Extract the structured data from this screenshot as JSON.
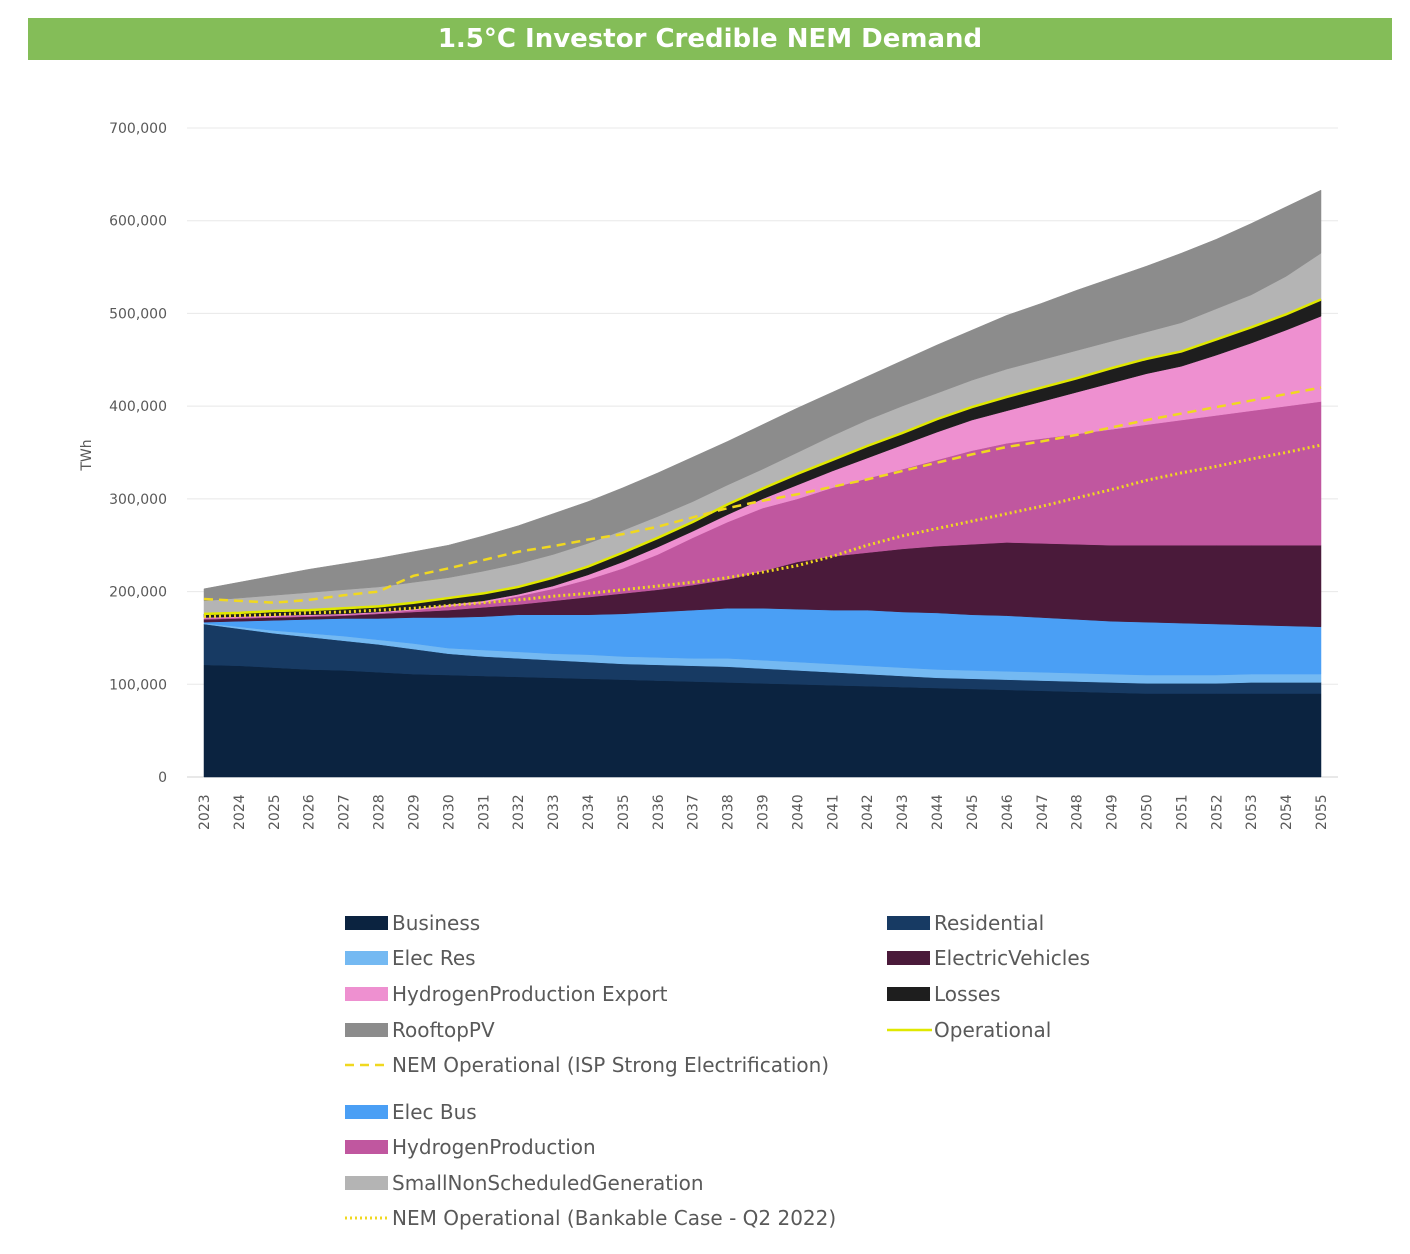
{
  "chart_data": {
    "type": "area",
    "title": "1.5°C Investor Credible NEM Demand",
    "ylabel": "TWh",
    "xlabel": "",
    "ylim": [
      0,
      700000
    ],
    "yticks": [
      "0",
      "100,000",
      "200,000",
      "300,000",
      "400,000",
      "500,000",
      "600,000",
      "700,000"
    ],
    "grid": true,
    "legend_position": "bottom",
    "x": [
      2023,
      2024,
      2025,
      2026,
      2027,
      2028,
      2029,
      2030,
      2031,
      2032,
      2033,
      2034,
      2035,
      2036,
      2037,
      2038,
      2039,
      2040,
      2041,
      2042,
      2043,
      2044,
      2045,
      2046,
      2047,
      2048,
      2049,
      2050,
      2051,
      2052,
      2053,
      2054,
      2055
    ],
    "stacked_series": [
      {
        "name": "Business",
        "color": "#0b2340",
        "values": [
          121000,
          120000,
          118000,
          116000,
          115000,
          113000,
          111000,
          110000,
          109000,
          108000,
          107000,
          106000,
          105000,
          104000,
          103000,
          102000,
          101000,
          100000,
          99000,
          98000,
          97000,
          96000,
          95000,
          94000,
          93000,
          92000,
          91000,
          90000,
          90000,
          90000,
          90000,
          90000,
          90000
        ]
      },
      {
        "name": "Residential",
        "color": "#173a63",
        "values": [
          44000,
          40000,
          37000,
          35000,
          32000,
          30000,
          27000,
          23000,
          21000,
          20000,
          19000,
          18000,
          17000,
          17000,
          17000,
          17000,
          16000,
          15000,
          14000,
          13000,
          12000,
          11000,
          11000,
          11000,
          11000,
          11000,
          11000,
          11000,
          11000,
          11000,
          12000,
          12000,
          12000
        ]
      },
      {
        "name": "Elec Res",
        "color": "#74b9f2",
        "values": [
          1000,
          2000,
          3000,
          4000,
          5000,
          5000,
          6000,
          6000,
          7000,
          7000,
          7000,
          8000,
          8000,
          8000,
          8000,
          9000,
          9000,
          9000,
          9000,
          9000,
          9000,
          9000,
          9000,
          9000,
          9000,
          9000,
          9000,
          9000,
          9000,
          9000,
          9000,
          9000,
          9000
        ]
      },
      {
        "name": "Elec Bus",
        "color": "#4a9ff5",
        "values": [
          1000,
          6000,
          11000,
          15000,
          19000,
          23000,
          28000,
          33000,
          36000,
          40000,
          42000,
          43000,
          46000,
          49000,
          52000,
          54000,
          56000,
          57000,
          58000,
          60000,
          60000,
          61000,
          60000,
          60000,
          59000,
          58000,
          57000,
          57000,
          56000,
          55000,
          53000,
          52000,
          51000
        ]
      },
      {
        "name": "ElectricVehicles",
        "color": "#4a1a3a",
        "values": [
          3000,
          3000,
          3000,
          3000,
          3000,
          5000,
          6000,
          8000,
          10000,
          11000,
          15000,
          19000,
          22000,
          24000,
          27000,
          31000,
          40000,
          51000,
          58000,
          62000,
          68000,
          72000,
          76000,
          79000,
          80000,
          81000,
          82000,
          83000,
          84000,
          85000,
          86000,
          87000,
          88000
        ]
      },
      {
        "name": "HydrogenProduction",
        "color": "#c0579f",
        "values": [
          1000,
          1000,
          1000,
          1000,
          1000,
          1000,
          2000,
          4000,
          5000,
          9000,
          13000,
          19000,
          27000,
          38000,
          51000,
          62000,
          68000,
          68000,
          74000,
          80000,
          86000,
          93000,
          101000,
          107000,
          113000,
          119000,
          125000,
          130000,
          135000,
          140000,
          145000,
          150000,
          155000
        ]
      },
      {
        "name": "HydrogenProduction Export",
        "color": "#ee90d0",
        "values": [
          1000,
          1000,
          1000,
          1000,
          1000,
          1000,
          1000,
          2000,
          2000,
          2000,
          3000,
          5000,
          7000,
          8000,
          7000,
          8000,
          10000,
          15000,
          18000,
          22000,
          26000,
          30000,
          33000,
          35000,
          40000,
          45000,
          50000,
          55000,
          58000,
          65000,
          73000,
          82000,
          92000
        ]
      },
      {
        "name": "Losses",
        "color": "#1e1e1e",
        "values": [
          4000,
          4000,
          5000,
          5000,
          6000,
          6000,
          7000,
          7000,
          8000,
          8000,
          9000,
          9000,
          10000,
          10000,
          10000,
          11000,
          11000,
          12000,
          12000,
          13000,
          13000,
          14000,
          14000,
          15000,
          15000,
          15000,
          16000,
          16000,
          16000,
          17000,
          17000,
          17000,
          18000
        ]
      },
      {
        "name": "SmallNonScheduledGeneration",
        "color": "#b4b4b4",
        "values": [
          14000,
          16000,
          17000,
          19000,
          20000,
          21000,
          22000,
          22000,
          24000,
          25000,
          25000,
          25000,
          24000,
          23000,
          22000,
          21000,
          21000,
          23000,
          26000,
          28000,
          29000,
          28000,
          29000,
          30000,
          30000,
          30000,
          29000,
          29000,
          31000,
          33000,
          35000,
          41000,
          50000
        ]
      },
      {
        "name": "RooftopPV",
        "color": "#8c8c8c",
        "values": [
          13000,
          17000,
          21000,
          25000,
          28000,
          31000,
          33000,
          35000,
          38000,
          41000,
          44000,
          45000,
          46000,
          47000,
          48000,
          47000,
          48000,
          48000,
          47000,
          47000,
          49000,
          52000,
          54000,
          58000,
          61000,
          65000,
          68000,
          71000,
          75000,
          75000,
          77000,
          75000,
          68000
        ]
      }
    ],
    "line_series": [
      {
        "name": "Operational",
        "color": "#e0e800",
        "style": "solid",
        "values": [
          176000,
          177000,
          179000,
          180000,
          182000,
          184000,
          188000,
          193000,
          198000,
          205000,
          215000,
          227000,
          242000,
          258000,
          275000,
          294000,
          311000,
          327000,
          342000,
          357000,
          371000,
          386000,
          399000,
          410000,
          420000,
          430000,
          441000,
          451000,
          459000,
          472000,
          485000,
          499000,
          515000
        ]
      },
      {
        "name": "NEM Operational (ISP Strong Electrification)",
        "color": "#f0d820",
        "style": "dashed",
        "values": [
          192000,
          190000,
          188000,
          191000,
          196000,
          200000,
          217000,
          225000,
          234000,
          243000,
          249000,
          256000,
          262000,
          270000,
          280000,
          290000,
          298000,
          305000,
          313000,
          321000,
          330000,
          339000,
          348000,
          356000,
          362000,
          369000,
          377000,
          385000,
          392000,
          399000,
          406000,
          413000,
          420000
        ]
      },
      {
        "name": "NEM Operational (Bankable Case - Q2 2022)",
        "color": "#f0d820",
        "style": "dotted",
        "values": [
          173000,
          174000,
          175000,
          177000,
          178000,
          180000,
          182000,
          185000,
          188000,
          191000,
          195000,
          198000,
          202000,
          206000,
          210000,
          215000,
          221000,
          228000,
          238000,
          250000,
          260000,
          268000,
          276000,
          284000,
          292000,
          301000,
          310000,
          320000,
          328000,
          335000,
          343000,
          350000,
          358000
        ]
      }
    ],
    "legend": [
      {
        "name": "Business",
        "kind": "area",
        "color": "#0b2340"
      },
      {
        "name": "Residential",
        "kind": "area",
        "color": "#173a63"
      },
      {
        "name": "Elec Res",
        "kind": "area",
        "color": "#74b9f2"
      },
      {
        "name": "ElectricVehicles",
        "kind": "area",
        "color": "#4a1a3a"
      },
      {
        "name": "HydrogenProduction Export",
        "kind": "area",
        "color": "#ee90d0"
      },
      {
        "name": "Losses",
        "kind": "area",
        "color": "#1e1e1e"
      },
      {
        "name": "RooftopPV",
        "kind": "area",
        "color": "#8c8c8c"
      },
      {
        "name": "Operational",
        "kind": "solid",
        "color": "#e0e800"
      },
      {
        "name": "NEM Operational (ISP Strong Electrification)",
        "kind": "dashed",
        "color": "#f0d820"
      },
      {
        "name": "Elec Bus",
        "kind": "area",
        "color": "#4a9ff5"
      },
      {
        "name": "HydrogenProduction",
        "kind": "area",
        "color": "#c0579f"
      },
      {
        "name": "SmallNonScheduledGeneration",
        "kind": "area",
        "color": "#b4b4b4"
      },
      {
        "name": "NEM Operational (Bankable Case - Q2 2022)",
        "kind": "dotted",
        "color": "#f0d820"
      }
    ]
  }
}
